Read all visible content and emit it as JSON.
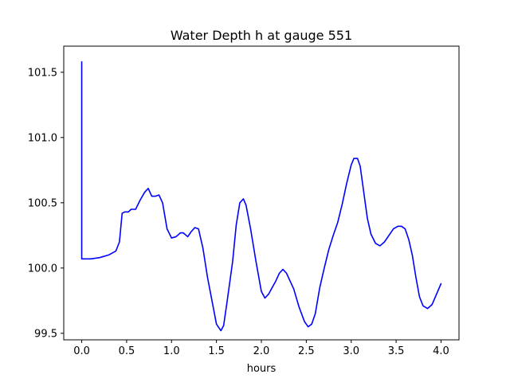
{
  "chart_data": {
    "type": "line",
    "title": "Water Depth h at gauge 551",
    "xlabel": "hours",
    "ylabel": "",
    "xlim": [
      -0.2,
      4.2
    ],
    "ylim": [
      99.45,
      101.7
    ],
    "xticks": [
      0.0,
      0.5,
      1.0,
      1.5,
      2.0,
      2.5,
      3.0,
      3.5,
      4.0
    ],
    "xtick_labels": [
      "0.0",
      "0.5",
      "1.0",
      "1.5",
      "2.0",
      "2.5",
      "3.0",
      "3.5",
      "4.0"
    ],
    "yticks": [
      99.5,
      100.0,
      100.5,
      101.0,
      101.5
    ],
    "ytick_labels": [
      "99.5",
      "100.0",
      "100.5",
      "101.0",
      "101.5"
    ],
    "grid": false,
    "series": [
      {
        "color": "#0000ff",
        "x": [
          0.0,
          0.0,
          0.0,
          0.1,
          0.2,
          0.3,
          0.38,
          0.42,
          0.45,
          0.48,
          0.52,
          0.55,
          0.6,
          0.65,
          0.7,
          0.74,
          0.78,
          0.82,
          0.86,
          0.9,
          0.95,
          1.0,
          1.05,
          1.1,
          1.13,
          1.18,
          1.22,
          1.26,
          1.3,
          1.35,
          1.4,
          1.45,
          1.5,
          1.55,
          1.58,
          1.62,
          1.68,
          1.72,
          1.76,
          1.8,
          1.83,
          1.88,
          1.94,
          2.0,
          2.04,
          2.08,
          2.12,
          2.16,
          2.2,
          2.24,
          2.28,
          2.32,
          2.36,
          2.42,
          2.48,
          2.52,
          2.56,
          2.6,
          2.65,
          2.7,
          2.75,
          2.8,
          2.85,
          2.9,
          2.95,
          3.0,
          3.03,
          3.07,
          3.1,
          3.14,
          3.18,
          3.22,
          3.27,
          3.32,
          3.37,
          3.42,
          3.47,
          3.52,
          3.56,
          3.6,
          3.64,
          3.68,
          3.72,
          3.76,
          3.8,
          3.85,
          3.9,
          3.95,
          4.0
        ],
        "y": [
          101.58,
          100.07,
          100.07,
          100.07,
          100.08,
          100.1,
          100.13,
          100.2,
          100.42,
          100.43,
          100.43,
          100.45,
          100.45,
          100.52,
          100.58,
          100.61,
          100.55,
          100.55,
          100.56,
          100.5,
          100.3,
          100.23,
          100.24,
          100.27,
          100.27,
          100.24,
          100.28,
          100.31,
          100.3,
          100.15,
          99.93,
          99.75,
          99.57,
          99.52,
          99.56,
          99.75,
          100.05,
          100.33,
          100.5,
          100.53,
          100.48,
          100.3,
          100.05,
          99.82,
          99.77,
          99.8,
          99.85,
          99.9,
          99.96,
          99.99,
          99.96,
          99.9,
          99.84,
          99.7,
          99.59,
          99.55,
          99.57,
          99.65,
          99.85,
          100.0,
          100.14,
          100.25,
          100.35,
          100.49,
          100.65,
          100.79,
          100.84,
          100.84,
          100.78,
          100.58,
          100.38,
          100.26,
          100.19,
          100.17,
          100.2,
          100.25,
          100.3,
          100.32,
          100.32,
          100.3,
          100.22,
          100.1,
          99.93,
          99.78,
          99.71,
          99.69,
          99.72,
          99.8,
          99.88
        ]
      }
    ]
  }
}
